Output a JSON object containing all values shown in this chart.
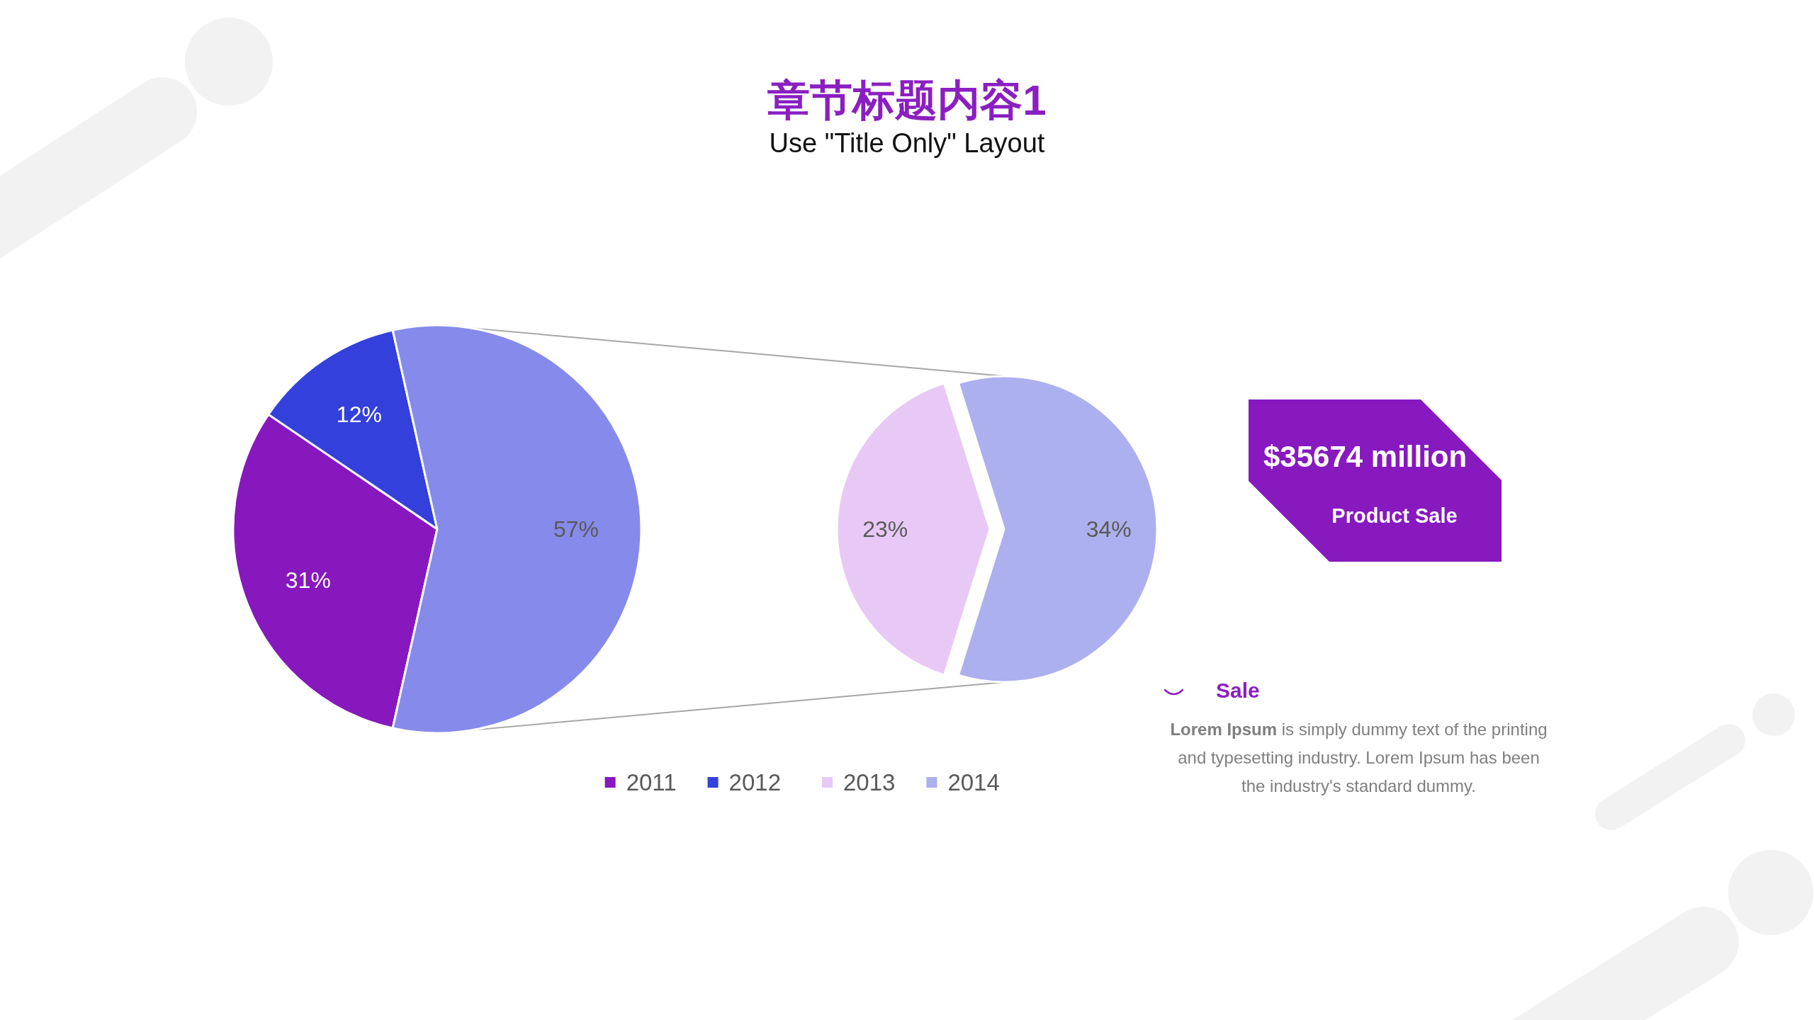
{
  "chart_data": [
    {
      "type": "pie",
      "title": "章节标题内容1",
      "subtitle": "Use \"Title Only\" Layout",
      "categories": [
        "2011",
        "2012",
        null
      ],
      "values": [
        31,
        12,
        57
      ],
      "colors": [
        "#8718bd",
        "#3340dc",
        "#868aea"
      ],
      "value_labels": [
        "31%",
        "12%",
        "57%"
      ],
      "legend": "bottom"
    },
    {
      "type": "pie",
      "categories": [
        "2013",
        "2014"
      ],
      "values": [
        23,
        34
      ],
      "colors": [
        "#e8c9f6",
        "#acb0ee"
      ],
      "value_labels": [
        "23%",
        "34%"
      ],
      "legend": "bottom"
    },
    {
      "type": "other",
      "annotations": [
        "$35674 million",
        "Product Sale",
        "Sale",
        "Lorem Ipsum is simply dummy text of the printing and typesetting industry. Lorem Ipsum has been the industry's standard dummy."
      ]
    }
  ]
}
